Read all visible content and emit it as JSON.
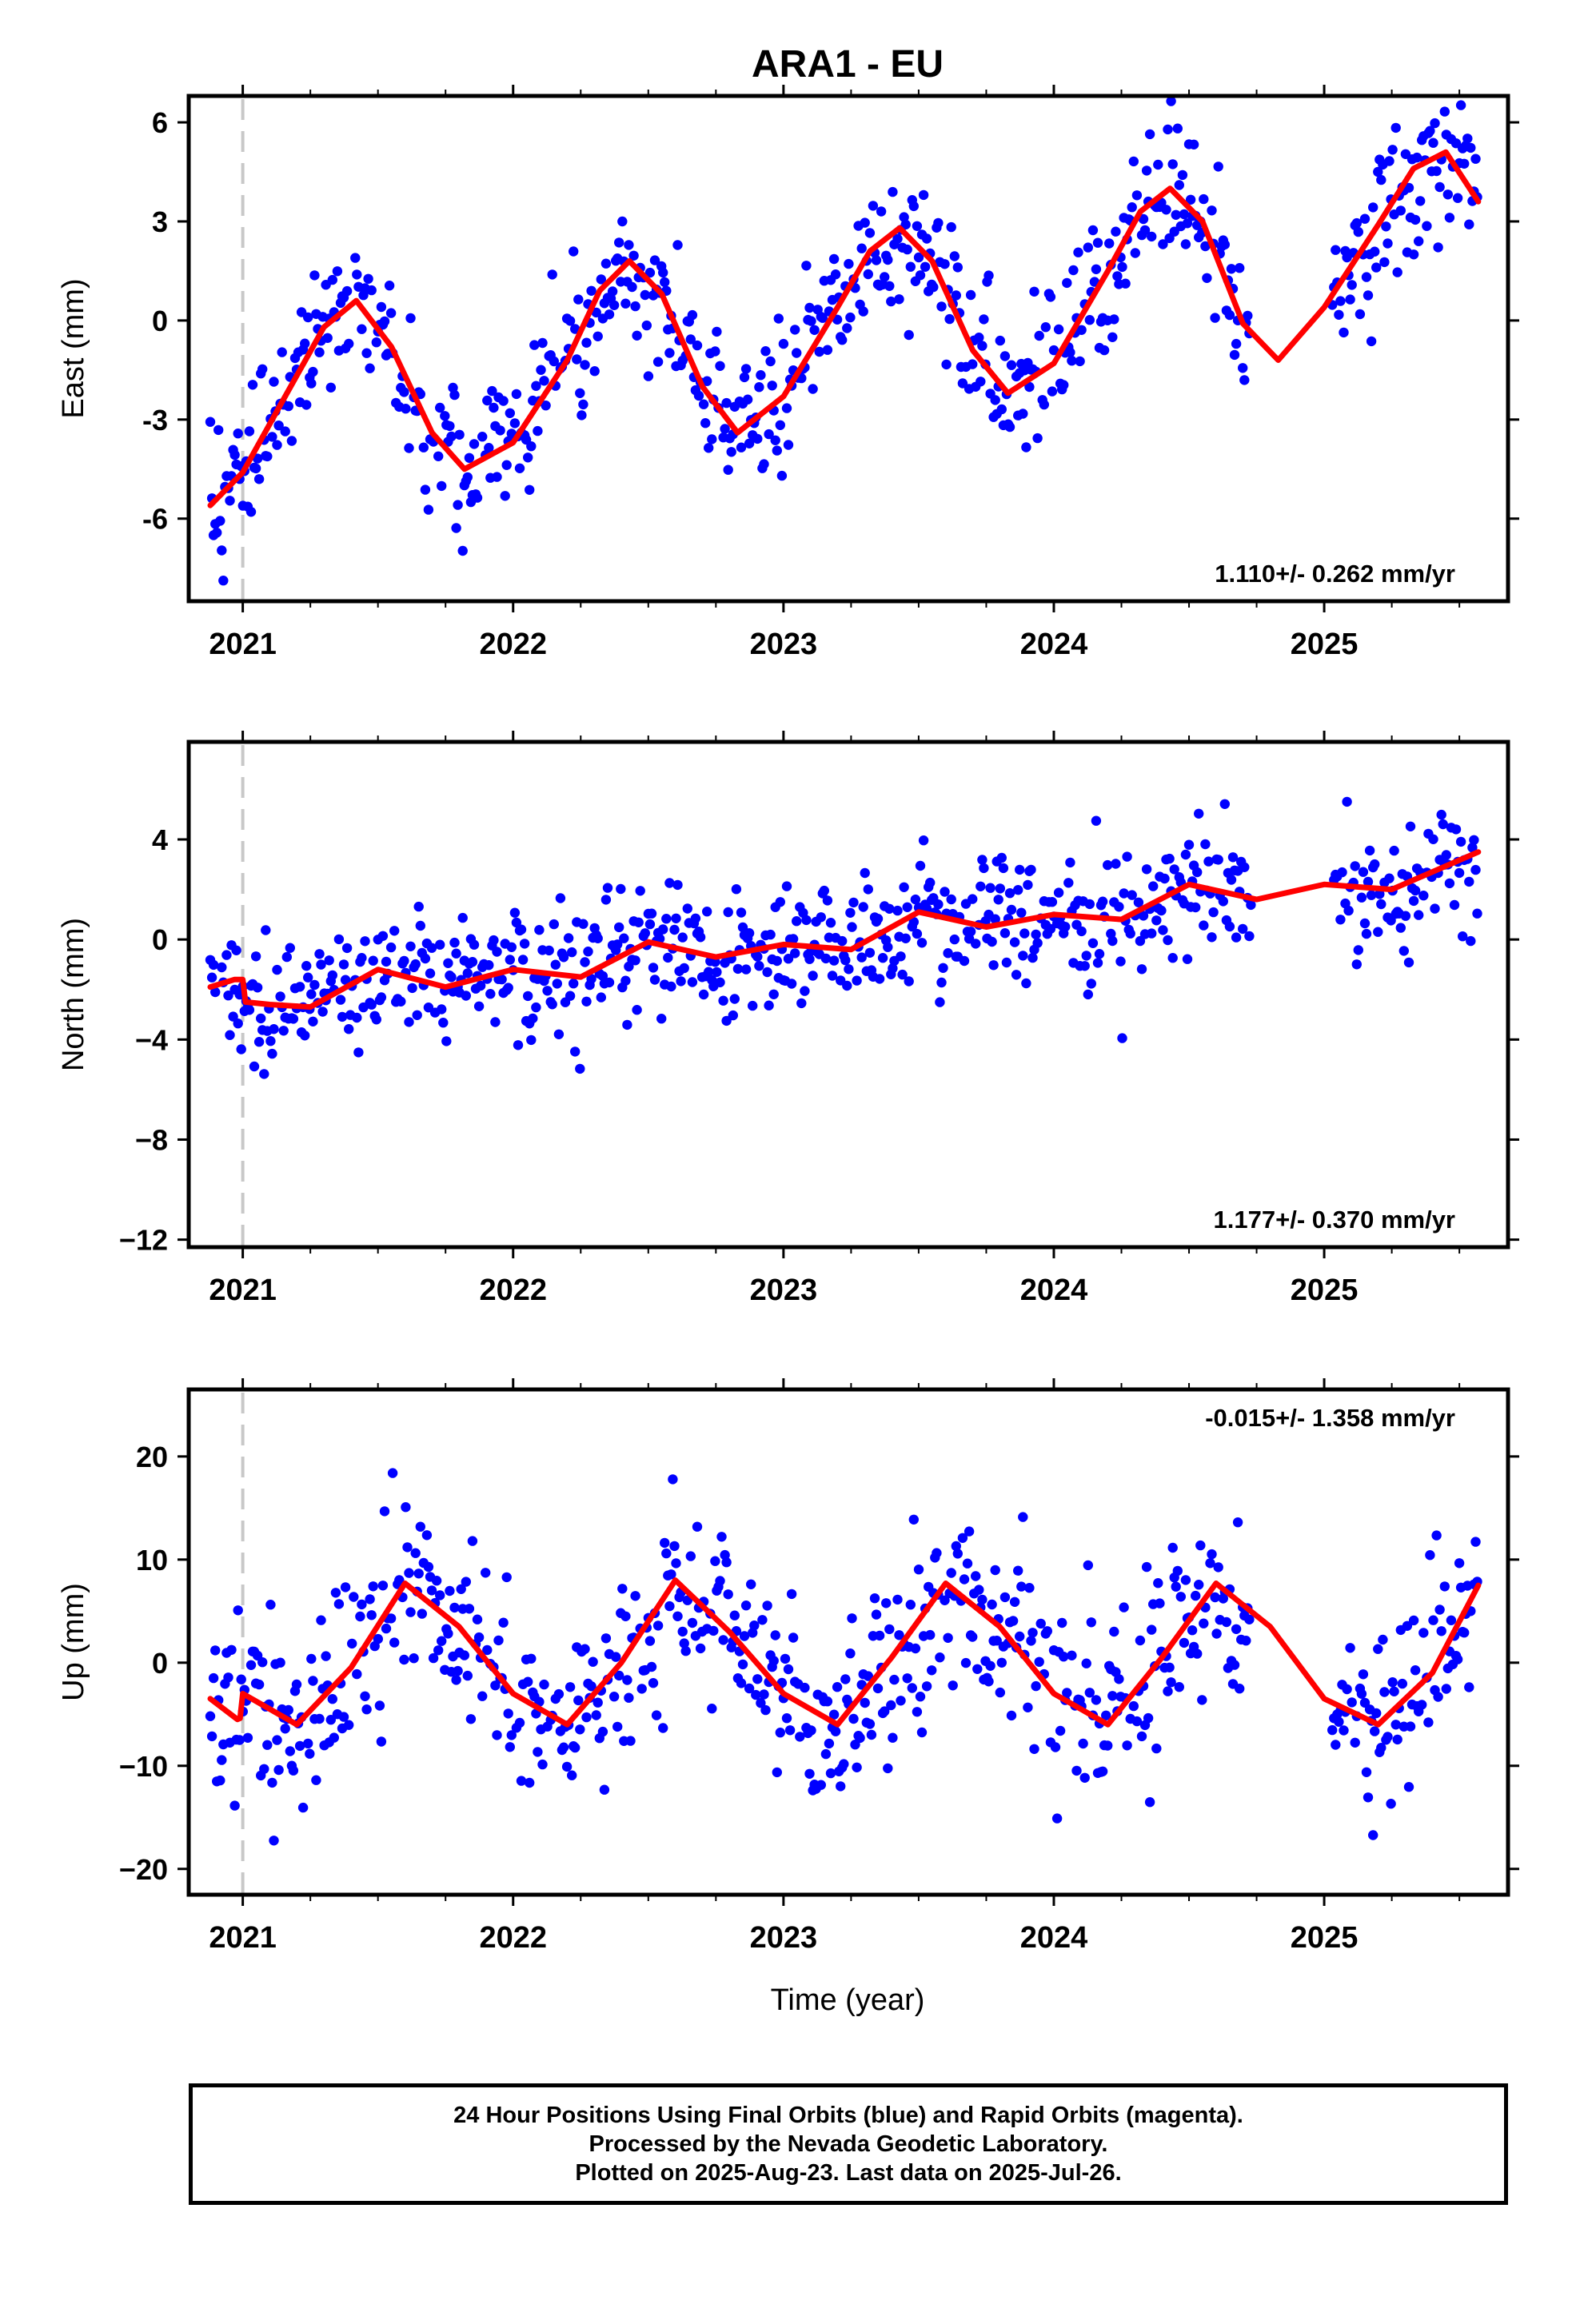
{
  "title": "ARA1 - EU",
  "xlabel": "Time (year)",
  "colors": {
    "data": "#0000ff",
    "model": "#ff0000",
    "epoch": "#c8c8c8"
  },
  "caption": [
    "24 Hour Positions Using Final Orbits (blue) and Rapid Orbits (magenta).",
    "Processed by the Nevada Geodetic Laboratory.",
    "Plotted on 2025-Aug-23. Last data on 2025-Jul-26."
  ],
  "chart_data": [
    {
      "type": "scatter",
      "component": "east",
      "ylabel": "East (mm)",
      "rate_label": "1.110+/- 0.262 mm/yr",
      "xlim": [
        2020.8,
        2025.68
      ],
      "ylim": [
        -8.5,
        6.8
      ],
      "yticks": [
        -6,
        -3,
        0,
        3,
        6
      ],
      "yticklabels": [
        "-6",
        "-3",
        "0",
        "3",
        "6"
      ],
      "xticks": [
        2021,
        2022,
        2023,
        2024,
        2025
      ],
      "xticklabels": [
        "2021",
        "2022",
        "2023",
        "2024",
        "2025"
      ],
      "epoch_line": 2021.0,
      "data_range": [
        2020.88,
        2025.57
      ],
      "gap": [
        2024.73,
        2025.03
      ],
      "scatter_sd": 1.1,
      "model": {
        "name": "model fit",
        "x": [
          2020.88,
          2021.0,
          2021.15,
          2021.3,
          2021.42,
          2021.55,
          2021.7,
          2021.82,
          2022.0,
          2022.2,
          2022.32,
          2022.43,
          2022.55,
          2022.7,
          2022.83,
          2023.0,
          2023.2,
          2023.32,
          2023.43,
          2023.55,
          2023.7,
          2023.83,
          2024.0,
          2024.2,
          2024.32,
          2024.43,
          2024.55,
          2024.7,
          2024.83,
          2025.0,
          2025.2,
          2025.33,
          2025.45,
          2025.57
        ],
        "y": [
          -5.6,
          -4.6,
          -2.4,
          -0.2,
          0.6,
          -0.8,
          -3.4,
          -4.5,
          -3.7,
          -1.2,
          0.9,
          1.8,
          0.8,
          -2.0,
          -3.4,
          -2.3,
          0.4,
          2.1,
          2.8,
          1.8,
          -0.9,
          -2.2,
          -1.3,
          1.5,
          3.3,
          4.0,
          3.0,
          -0.1,
          -1.2,
          0.4,
          2.9,
          4.6,
          5.1,
          3.6
        ]
      }
    },
    {
      "type": "scatter",
      "component": "north",
      "ylabel": "North (mm)",
      "rate_label": "1.177+/- 0.370 mm/yr",
      "xlim": [
        2020.8,
        2025.68
      ],
      "ylim": [
        -12.3,
        7.9
      ],
      "yticks": [
        -12,
        -8,
        -4,
        0,
        4
      ],
      "yticklabels": [
        "−12",
        "−8",
        "−4",
        "0",
        "4"
      ],
      "xticks": [
        2021,
        2022,
        2023,
        2024,
        2025
      ],
      "xticklabels": [
        "2021",
        "2022",
        "2023",
        "2024",
        "2025"
      ],
      "epoch_line": 2021.0,
      "data_range": [
        2020.88,
        2025.57
      ],
      "gap": [
        2024.73,
        2025.03
      ],
      "scatter_sd": 1.3,
      "model": {
        "name": "model fit",
        "x": [
          2020.88,
          2020.97,
          2021.0,
          2021.01,
          2021.1,
          2021.25,
          2021.5,
          2021.75,
          2022.0,
          2022.25,
          2022.5,
          2022.75,
          2023.0,
          2023.25,
          2023.5,
          2023.75,
          2024.0,
          2024.25,
          2024.5,
          2024.75,
          2025.0,
          2025.25,
          2025.57
        ],
        "y": [
          -1.9,
          -1.6,
          -1.6,
          -2.5,
          -2.6,
          -2.7,
          -1.2,
          -1.9,
          -1.2,
          -1.5,
          -0.1,
          -0.7,
          -0.2,
          -0.4,
          1.1,
          0.5,
          1.0,
          0.8,
          2.2,
          1.6,
          2.2,
          2.0,
          3.5
        ]
      }
    },
    {
      "type": "scatter",
      "component": "up",
      "ylabel": "Up (mm)",
      "rate_label": "-0.015+/- 1.358 mm/yr",
      "xlim": [
        2020.8,
        2025.68
      ],
      "ylim": [
        -22.5,
        26.5
      ],
      "yticks": [
        -20,
        -10,
        0,
        10,
        20
      ],
      "yticklabels": [
        "−20",
        "−10",
        "0",
        "10",
        "20"
      ],
      "xticks": [
        2021,
        2022,
        2023,
        2024,
        2025
      ],
      "xticklabels": [
        "2021",
        "2022",
        "2023",
        "2024",
        "2025"
      ],
      "epoch_line": 2021.0,
      "data_range": [
        2020.88,
        2025.57
      ],
      "gap": [
        2024.73,
        2025.03
      ],
      "scatter_sd": 4.5,
      "model": {
        "name": "model fit",
        "x": [
          2020.88,
          2020.98,
          2020.99,
          2021.0,
          2021.1,
          2021.2,
          2021.4,
          2021.6,
          2021.8,
          2022.0,
          2022.2,
          2022.4,
          2022.6,
          2022.8,
          2023.0,
          2023.2,
          2023.4,
          2023.6,
          2023.8,
          2024.0,
          2024.2,
          2024.4,
          2024.6,
          2024.8,
          2025.0,
          2025.2,
          2025.4,
          2025.57
        ],
        "y": [
          -3.5,
          -5.5,
          -5.4,
          -3.0,
          -4.5,
          -6.0,
          -0.5,
          7.7,
          3.5,
          -3.0,
          -6.0,
          0.0,
          8.0,
          3.0,
          -3.0,
          -6.0,
          0.5,
          7.7,
          3.5,
          -3.0,
          -6.0,
          0.5,
          7.7,
          3.5,
          -3.5,
          -6.0,
          -1.0,
          7.5
        ]
      }
    }
  ]
}
